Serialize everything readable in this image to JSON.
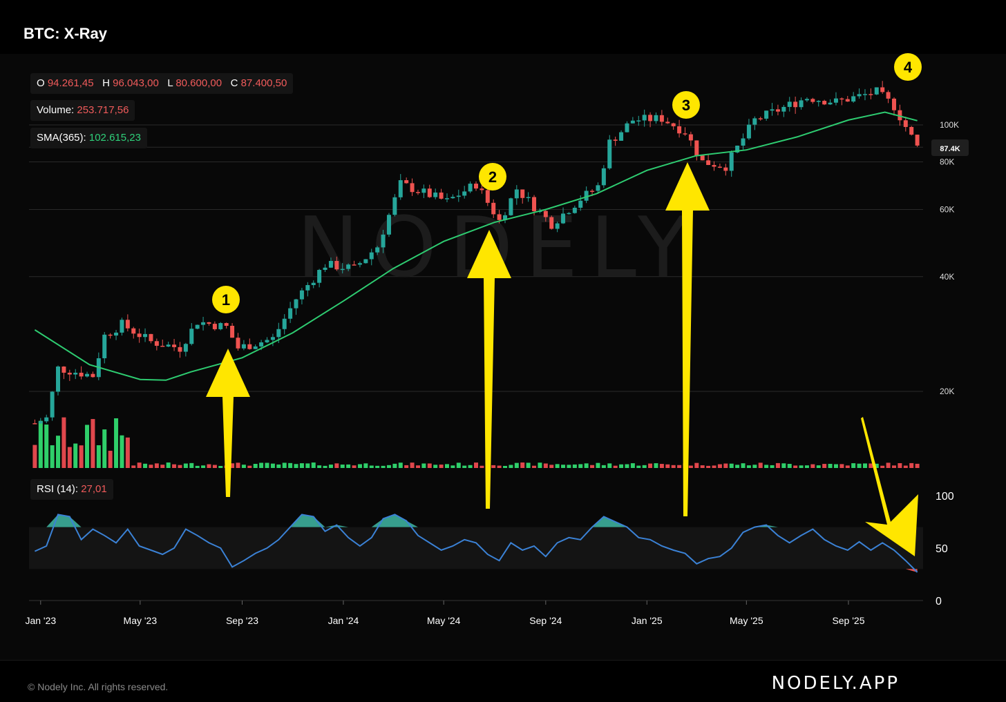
{
  "header": {
    "title": "BTC: X-Ray"
  },
  "legend": {
    "ohlc": [
      {
        "key": "O",
        "value": "94.261,45"
      },
      {
        "key": "H",
        "value": "96.043,00"
      },
      {
        "key": "L",
        "value": "80.600,00"
      },
      {
        "key": "C",
        "value": "87.400,50"
      }
    ],
    "volume_label": "Volume:",
    "volume_value": "253.717,56",
    "sma_label": "SMA(365):",
    "sma_value": "102.615,23",
    "rsi_label": "RSI (14):",
    "rsi_value": "27,01"
  },
  "price_axis": {
    "ticks": [
      "20K",
      "40K",
      "60K",
      "80K",
      "100K"
    ],
    "last_price_label": "87.4K"
  },
  "rsi_axis": {
    "ticks": [
      "0",
      "50",
      "100"
    ]
  },
  "time_axis": {
    "ticks": [
      "Jan '23",
      "May '23",
      "Sep '23",
      "Jan '24",
      "May '24",
      "Sep '24",
      "Jan '25",
      "May '25",
      "Sep '25"
    ]
  },
  "watermark": "NODELY",
  "annotations": [
    {
      "label": "1",
      "date": "2023-09",
      "kind": "arrow-up"
    },
    {
      "label": "2",
      "date": "2024-07",
      "kind": "arrow-up"
    },
    {
      "label": "3",
      "date": "2025-03",
      "kind": "arrow-up"
    },
    {
      "label": "4",
      "date": "2025-11",
      "kind": "arrow-down"
    }
  ],
  "colors": {
    "up": "#26a69a",
    "down": "#ef5350",
    "sma": "#2ecc71",
    "rsi": "#3b82d6",
    "annotation": "#ffe600",
    "background": "#080808"
  },
  "chart_data": {
    "type": "candlestick",
    "interval": "weekly (approx.)",
    "y_scale": "log",
    "ylim": [
      16000,
      130000
    ],
    "price_path": [
      [
        "2022-12-25",
        16500
      ],
      [
        "2023-01-08",
        17000
      ],
      [
        "2023-01-22",
        23000
      ],
      [
        "2023-03-05",
        22000
      ],
      [
        "2023-03-19",
        28000
      ],
      [
        "2023-04-09",
        30000
      ],
      [
        "2023-05-14",
        27000
      ],
      [
        "2023-06-18",
        26000
      ],
      [
        "2023-07-09",
        30500
      ],
      [
        "2023-08-13",
        29500
      ],
      [
        "2023-08-27",
        26000
      ],
      [
        "2023-10-08",
        27500
      ],
      [
        "2023-11-05",
        35000
      ],
      [
        "2023-12-10",
        43000
      ],
      [
        "2024-01-14",
        42000
      ],
      [
        "2024-02-11",
        48000
      ],
      [
        "2024-03-10",
        70000
      ],
      [
        "2024-05-05",
        63000
      ],
      [
        "2024-06-09",
        70000
      ],
      [
        "2024-07-07",
        56000
      ],
      [
        "2024-07-28",
        68000
      ],
      [
        "2024-09-08",
        55000
      ],
      [
        "2024-10-13",
        64000
      ],
      [
        "2024-11-03",
        69000
      ],
      [
        "2024-11-17",
        90000
      ],
      [
        "2024-12-15",
        103000
      ],
      [
        "2025-01-19",
        104000
      ],
      [
        "2025-02-16",
        96000
      ],
      [
        "2025-03-09",
        80000
      ],
      [
        "2025-04-06",
        78000
      ],
      [
        "2025-05-11",
        103000
      ],
      [
        "2025-07-13",
        118000
      ],
      [
        "2025-08-17",
        115000
      ],
      [
        "2025-10-05",
        122000
      ],
      [
        "2025-10-26",
        112000
      ],
      [
        "2025-11-16",
        93000
      ],
      [
        "2025-11-23",
        87400
      ]
    ],
    "sma_365": [
      [
        "2022-12-25",
        29000
      ],
      [
        "2023-03-01",
        23500
      ],
      [
        "2023-05-01",
        21500
      ],
      [
        "2023-06-01",
        21400
      ],
      [
        "2023-07-01",
        22500
      ],
      [
        "2023-09-01",
        24500
      ],
      [
        "2023-11-01",
        28500
      ],
      [
        "2024-01-01",
        34500
      ],
      [
        "2024-03-01",
        42000
      ],
      [
        "2024-05-01",
        49500
      ],
      [
        "2024-07-01",
        55500
      ],
      [
        "2024-09-01",
        60000
      ],
      [
        "2024-11-01",
        66000
      ],
      [
        "2025-01-01",
        76000
      ],
      [
        "2025-03-01",
        83000
      ],
      [
        "2025-05-01",
        86000
      ],
      [
        "2025-07-01",
        93000
      ],
      [
        "2025-09-01",
        103000
      ],
      [
        "2025-10-15",
        108000
      ],
      [
        "2025-11-23",
        102615
      ]
    ],
    "rsi_14": [
      [
        "2022-12-25",
        47
      ],
      [
        "2023-01-08",
        52
      ],
      [
        "2023-01-22",
        82
      ],
      [
        "2023-02-05",
        80
      ],
      [
        "2023-02-19",
        58
      ],
      [
        "2023-03-05",
        68
      ],
      [
        "2023-03-19",
        62
      ],
      [
        "2023-04-02",
        55
      ],
      [
        "2023-04-16",
        68
      ],
      [
        "2023-04-30",
        52
      ],
      [
        "2023-05-14",
        48
      ],
      [
        "2023-05-28",
        44
      ],
      [
        "2023-06-11",
        50
      ],
      [
        "2023-06-25",
        68
      ],
      [
        "2023-07-09",
        62
      ],
      [
        "2023-07-23",
        55
      ],
      [
        "2023-08-06",
        50
      ],
      [
        "2023-08-20",
        32
      ],
      [
        "2023-09-03",
        38
      ],
      [
        "2023-09-17",
        45
      ],
      [
        "2023-10-01",
        50
      ],
      [
        "2023-10-15",
        58
      ],
      [
        "2023-10-29",
        70
      ],
      [
        "2023-11-12",
        82
      ],
      [
        "2023-11-26",
        80
      ],
      [
        "2023-12-10",
        66
      ],
      [
        "2023-12-24",
        72
      ],
      [
        "2024-01-07",
        60
      ],
      [
        "2024-01-21",
        52
      ],
      [
        "2024-02-04",
        60
      ],
      [
        "2024-02-18",
        78
      ],
      [
        "2024-03-03",
        82
      ],
      [
        "2024-03-17",
        76
      ],
      [
        "2024-03-31",
        62
      ],
      [
        "2024-04-14",
        55
      ],
      [
        "2024-04-28",
        48
      ],
      [
        "2024-05-12",
        52
      ],
      [
        "2024-05-26",
        58
      ],
      [
        "2024-06-09",
        55
      ],
      [
        "2024-06-23",
        44
      ],
      [
        "2024-07-07",
        38
      ],
      [
        "2024-07-21",
        55
      ],
      [
        "2024-08-04",
        48
      ],
      [
        "2024-08-18",
        52
      ],
      [
        "2024-09-01",
        42
      ],
      [
        "2024-09-15",
        55
      ],
      [
        "2024-09-29",
        60
      ],
      [
        "2024-10-13",
        58
      ],
      [
        "2024-10-27",
        70
      ],
      [
        "2024-11-10",
        80
      ],
      [
        "2024-11-24",
        75
      ],
      [
        "2024-12-08",
        70
      ],
      [
        "2024-12-22",
        60
      ],
      [
        "2025-01-05",
        58
      ],
      [
        "2025-01-19",
        52
      ],
      [
        "2025-02-02",
        48
      ],
      [
        "2025-02-16",
        45
      ],
      [
        "2025-03-02",
        35
      ],
      [
        "2025-03-16",
        40
      ],
      [
        "2025-03-30",
        42
      ],
      [
        "2025-04-13",
        50
      ],
      [
        "2025-04-27",
        65
      ],
      [
        "2025-05-11",
        70
      ],
      [
        "2025-05-25",
        72
      ],
      [
        "2025-06-08",
        62
      ],
      [
        "2025-06-22",
        55
      ],
      [
        "2025-07-06",
        62
      ],
      [
        "2025-07-20",
        68
      ],
      [
        "2025-08-03",
        58
      ],
      [
        "2025-08-17",
        52
      ],
      [
        "2025-08-31",
        48
      ],
      [
        "2025-09-14",
        56
      ],
      [
        "2025-09-28",
        48
      ],
      [
        "2025-10-12",
        55
      ],
      [
        "2025-10-26",
        48
      ],
      [
        "2025-11-09",
        38
      ],
      [
        "2025-11-23",
        27
      ]
    ],
    "rsi_levels": {
      "overbought": 70,
      "oversold": 30
    },
    "rsi_ylim": [
      0,
      100
    ],
    "volume_note": "large green/red bars in early 2023, then small bars"
  }
}
